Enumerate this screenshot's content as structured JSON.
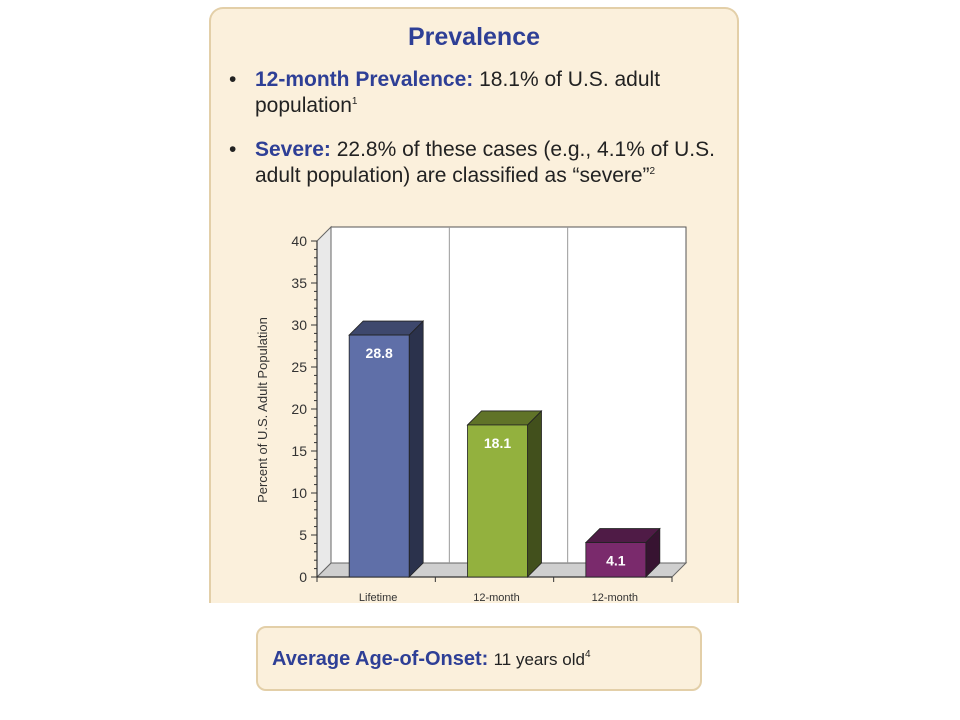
{
  "panel": {
    "title": "Prevalence",
    "bullets": [
      {
        "label": "12-month Prevalence:",
        "text": " 18.1% of U.S. adult population",
        "sup": "1"
      },
      {
        "label": "Severe:",
        "text": " 22.8% of these cases (e.g., 4.1% of U.S. adult population) are classified as “severe”",
        "sup": "2"
      }
    ]
  },
  "chart_data": {
    "type": "bar",
    "categories": [
      "Lifetime",
      "12-month",
      "12-month"
    ],
    "values": [
      28.8,
      18.1,
      4.1
    ],
    "value_labels": [
      "28.8",
      "18.1",
      "4.1"
    ],
    "colors": [
      "#5f6fa8",
      "#93b13e",
      "#7a2a6c"
    ],
    "ylabel": "Percent of U.S. Adult Population",
    "ylim": [
      0,
      40
    ],
    "yticks": [
      0,
      5,
      10,
      15,
      20,
      25,
      30,
      35,
      40
    ],
    "grid": "vertical separators"
  },
  "footer": {
    "label": "Average Age-of-Onset:",
    "value": "11 years old",
    "sup": "4"
  }
}
